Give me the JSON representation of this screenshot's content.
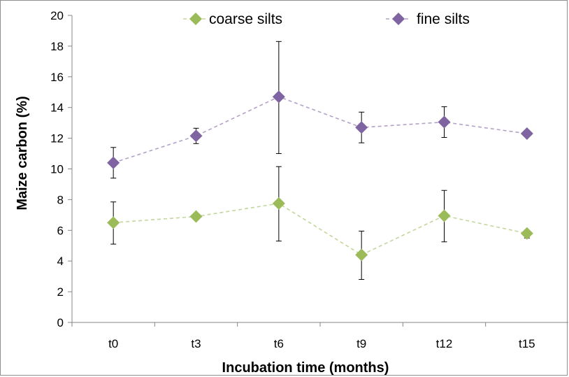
{
  "chart_data": {
    "type": "line",
    "title": "",
    "xlabel": "Incubation time (months)",
    "ylabel": "Maize carbon (%)",
    "categories": [
      "t0",
      "t3",
      "t6",
      "t9",
      "t12",
      "t15"
    ],
    "ylim": [
      0,
      20
    ],
    "yticks": [
      "0",
      "2",
      "4",
      "6",
      "8",
      "10",
      "12",
      "14",
      "16",
      "18",
      "20"
    ],
    "grid": false,
    "legend_position": "top",
    "series": [
      {
        "name": "coarse silts",
        "color": "#9bbb59",
        "line_color": "#c3d69b",
        "marker": "diamond",
        "line_style": "dashed",
        "values": [
          6.5,
          6.9,
          7.75,
          4.4,
          6.95,
          5.8
        ],
        "error_low": [
          5.1,
          6.7,
          5.3,
          2.8,
          5.25,
          5.5
        ],
        "error_high": [
          7.85,
          7.1,
          10.15,
          5.95,
          8.6,
          6.0
        ]
      },
      {
        "name": "fine silts",
        "color": "#8064a2",
        "line_color": "#b3a2c7",
        "marker": "diamond",
        "line_style": "dashed",
        "values": [
          10.4,
          12.15,
          14.7,
          12.7,
          13.05,
          12.3
        ],
        "error_low": [
          9.4,
          11.65,
          11.0,
          11.7,
          12.05,
          12.1
        ],
        "error_high": [
          11.4,
          12.65,
          18.3,
          13.7,
          14.05,
          12.5
        ]
      }
    ]
  }
}
